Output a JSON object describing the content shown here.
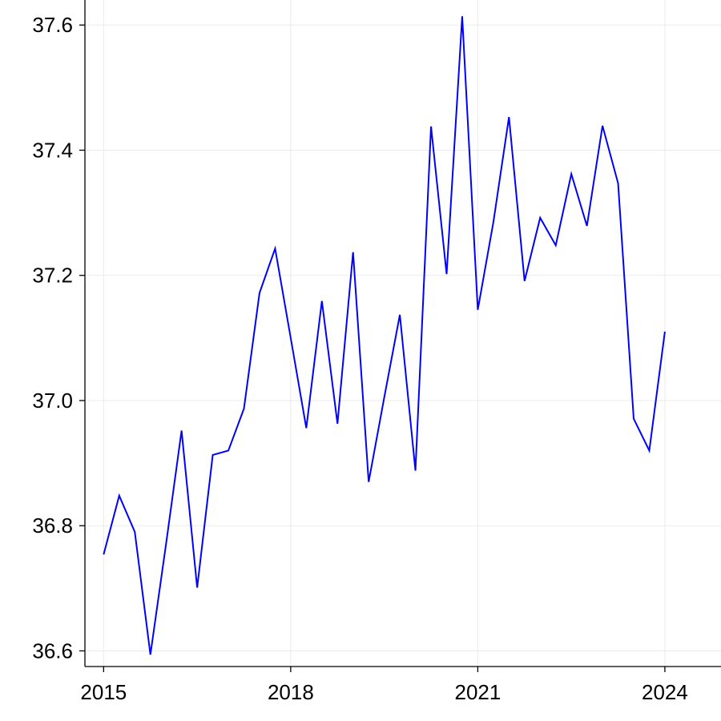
{
  "chart_data": {
    "type": "line",
    "title": "",
    "xlabel": "",
    "ylabel": "",
    "xlim": [
      2014.7,
      2024.9
    ],
    "ylim": [
      36.575,
      37.64
    ],
    "x_ticks": [
      2015,
      2018,
      2021,
      2024
    ],
    "x_tick_labels": [
      "2015",
      "2018",
      "2021",
      "2024"
    ],
    "y_ticks": [
      36.6,
      36.8,
      37.0,
      37.2,
      37.4,
      37.6
    ],
    "y_tick_labels": [
      "36.6",
      "36.8",
      "37.0",
      "37.2",
      "37.4",
      "37.6"
    ],
    "grid": true,
    "legend": "none",
    "series": [
      {
        "color": "#0000ff",
        "x": [
          2015.0,
          2015.25,
          2015.5,
          2015.75,
          2016.0,
          2016.25,
          2016.5,
          2016.75,
          2017.0,
          2017.25,
          2017.5,
          2017.75,
          2018.0,
          2018.25,
          2018.5,
          2018.75,
          2019.0,
          2019.25,
          2019.5,
          2019.75,
          2020.0,
          2020.25,
          2020.5,
          2020.75,
          2021.0,
          2021.25,
          2021.5,
          2021.75,
          2022.0,
          2022.25,
          2022.5,
          2022.75,
          2023.0,
          2023.25,
          2023.5,
          2023.75,
          2024.0
        ],
        "y": [
          36.754,
          36.848,
          36.79,
          36.594,
          36.77,
          36.952,
          36.701,
          36.913,
          36.92,
          36.987,
          37.172,
          37.243,
          37.1,
          36.956,
          37.159,
          36.963,
          37.237,
          36.87,
          37.005,
          37.137,
          36.888,
          37.438,
          37.202,
          37.614,
          37.145,
          37.285,
          37.453,
          37.191,
          37.292,
          37.248,
          37.362,
          37.279,
          37.439,
          37.347,
          36.971,
          36.92,
          37.11
        ]
      }
    ]
  }
}
